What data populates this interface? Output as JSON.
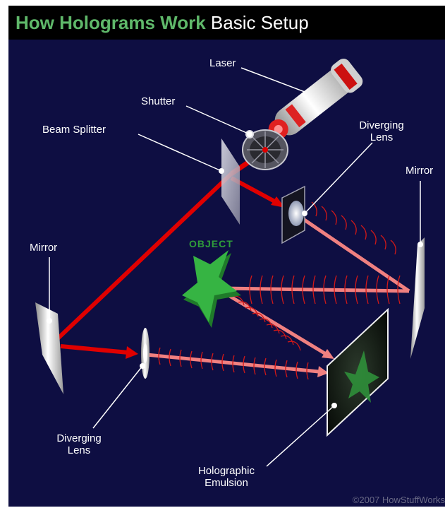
{
  "header": {
    "title_part1": "How Holograms Work",
    "title_part2": "Basic Setup"
  },
  "labels": {
    "laser": "Laser",
    "shutter": "Shutter",
    "beam_splitter": "Beam Splitter",
    "diverging_lens_top_1": "Diverging",
    "diverging_lens_top_2": "Lens",
    "mirror_right": "Mirror",
    "mirror_left": "Mirror",
    "object": "OBJECT",
    "diverging_lens_bottom_1": "Diverging",
    "diverging_lens_bottom_2": "Lens",
    "holographic_emulsion_1": "Holographic",
    "holographic_emulsion_2": "Emulsion"
  },
  "copyright": "©2007  HowStuffWorks",
  "colors": {
    "background": "#0e0e42",
    "laser_beam": "#e00000",
    "spread_beam": "#f08080",
    "object_green": "#2e9a3a",
    "title_green": "#5fb86a"
  }
}
